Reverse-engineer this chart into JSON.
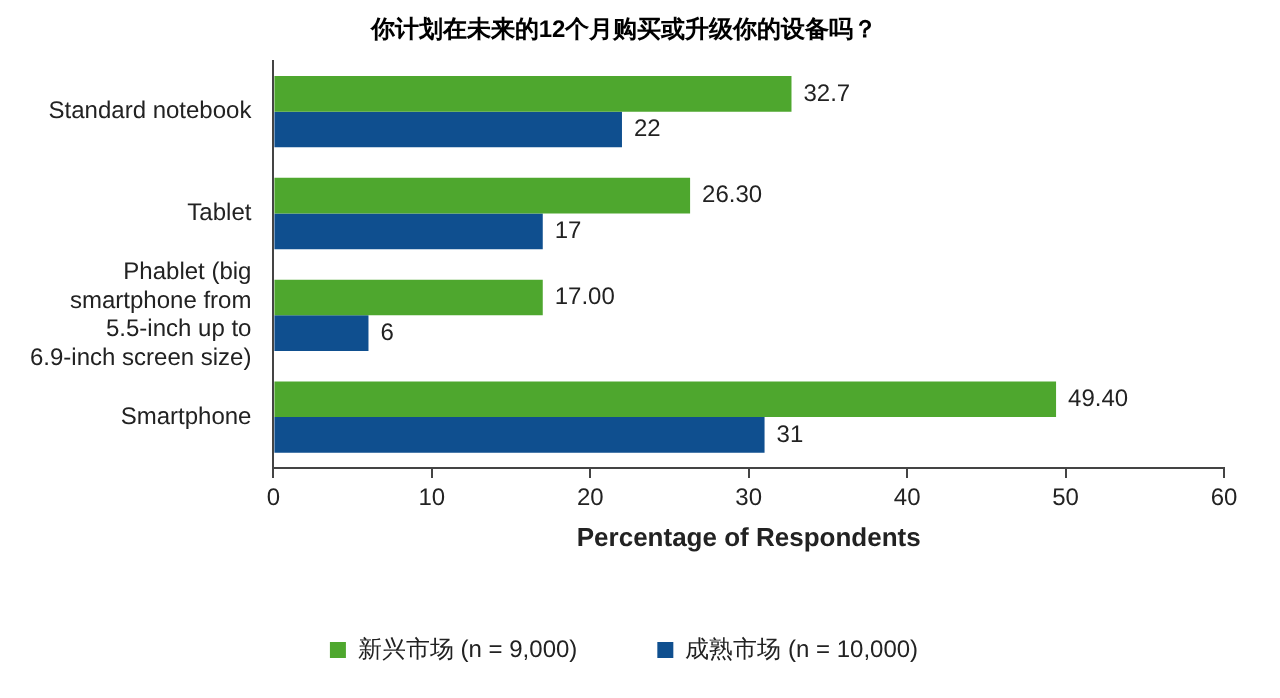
{
  "chart_data": {
    "type": "bar",
    "orientation": "horizontal",
    "title": "你计划在未来的12个月购买或升级你的设备吗？",
    "xlabel": "Percentage of Respondents",
    "categories": [
      "Standard notebook",
      "Tablet",
      "Phablet (big smartphone from 5.5-inch up to 6.9-inch screen size)",
      "Smartphone"
    ],
    "series": [
      {
        "name": "新兴市场 (n = 9,000)",
        "color": "#4ea72e",
        "values": [
          32.7,
          26.3,
          17.0,
          49.4
        ],
        "value_labels": [
          "32.7",
          "26.30",
          "17.00",
          "49.40"
        ]
      },
      {
        "name": "成熟市场 (n = 10,000)",
        "color": "#0f4f8f",
        "values": [
          22,
          17,
          6,
          31
        ],
        "value_labels": [
          "22",
          "17",
          "6",
          "31"
        ]
      }
    ],
    "xlim": [
      0,
      60
    ],
    "xticks": [
      0,
      10,
      20,
      30,
      40,
      50,
      60
    ],
    "grid": false,
    "legend": "bottom"
  }
}
